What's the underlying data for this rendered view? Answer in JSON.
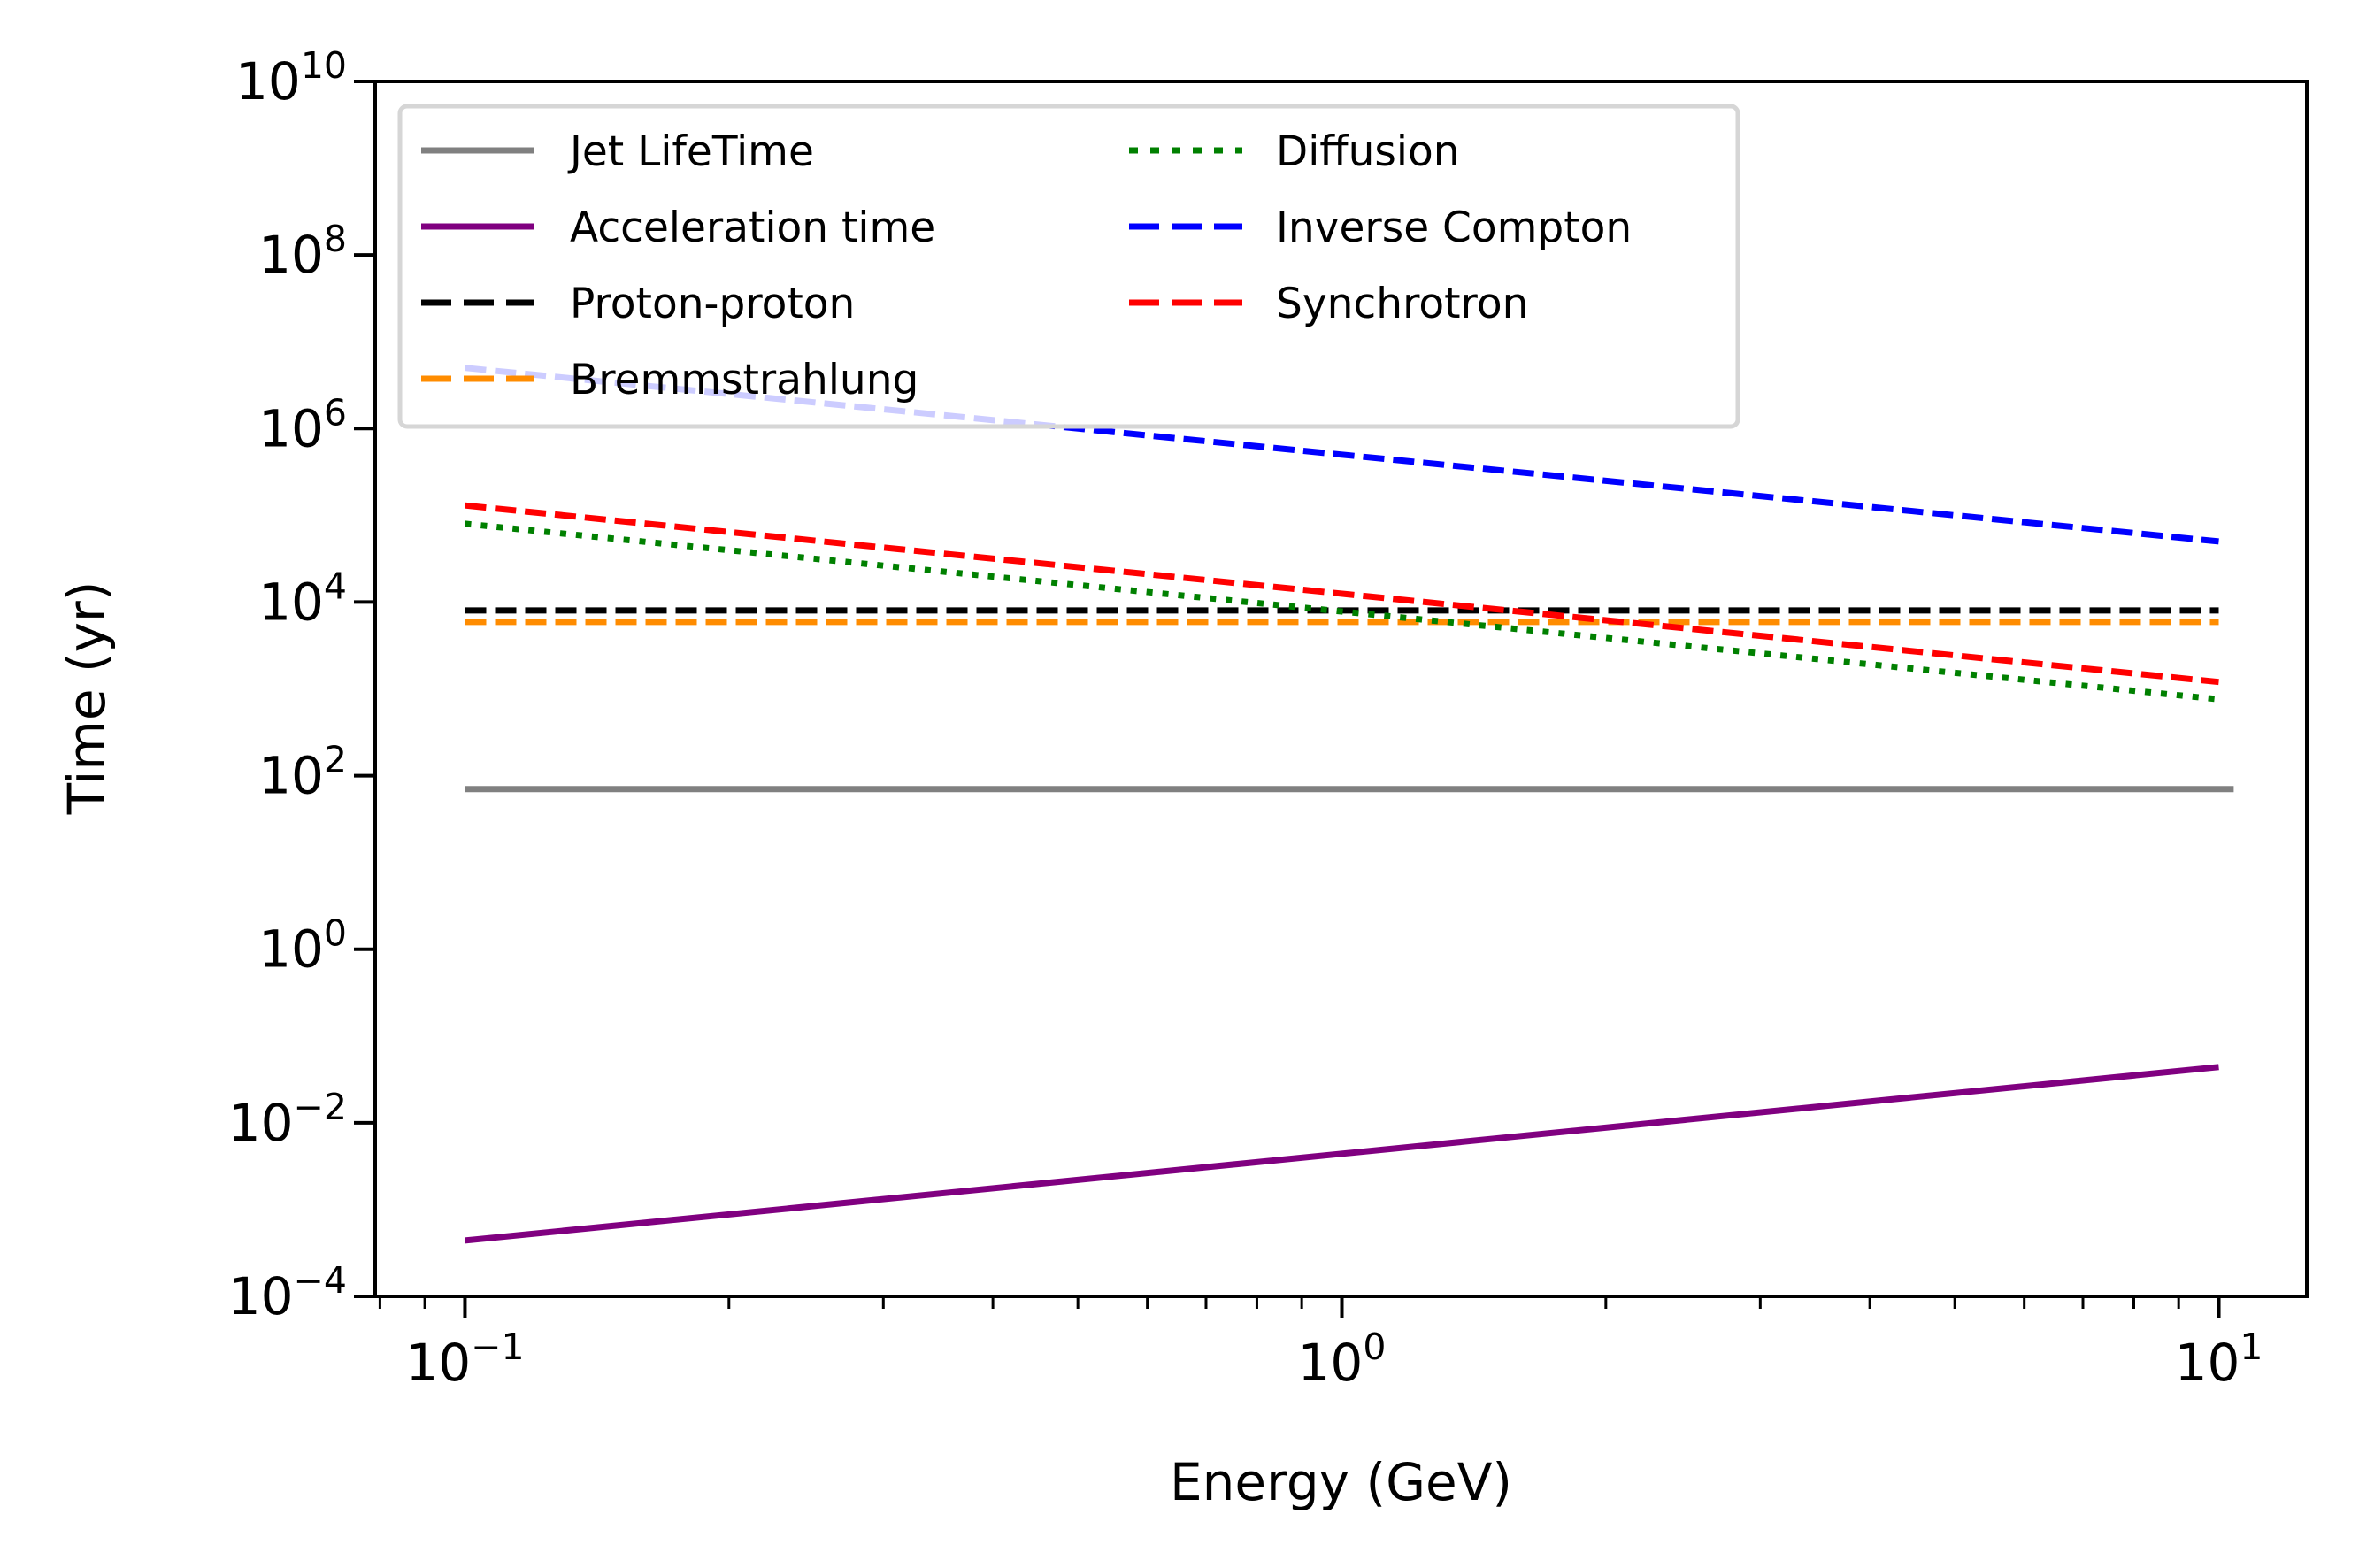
{
  "chart_data": {
    "type": "line",
    "title": "",
    "xlabel": "Energy (GeV)",
    "ylabel": "Time (yr)",
    "xscale": "log",
    "yscale": "log",
    "xlim": [
      0.079,
      12.6
    ],
    "ylim": [
      0.0001,
      10000000000.0
    ],
    "grid": false,
    "legend_position": "top-left",
    "legend_columns": 2,
    "x_ticks": [
      {
        "base": "10",
        "exp": "−1",
        "value": 0.1
      },
      {
        "base": "10",
        "exp": "0",
        "value": 1
      },
      {
        "base": "10",
        "exp": "1",
        "value": 10
      }
    ],
    "y_ticks": [
      {
        "base": "10",
        "exp": "−4",
        "value": 0.0001
      },
      {
        "base": "10",
        "exp": "−2",
        "value": 0.01
      },
      {
        "base": "10",
        "exp": "0",
        "value": 1
      },
      {
        "base": "10",
        "exp": "2",
        "value": 100.0
      },
      {
        "base": "10",
        "exp": "4",
        "value": 10000.0
      },
      {
        "base": "10",
        "exp": "6",
        "value": 1000000.0
      },
      {
        "base": "10",
        "exp": "8",
        "value": 100000000.0
      },
      {
        "base": "10",
        "exp": "10",
        "value": 10000000000.0
      }
    ],
    "series": [
      {
        "name": "Jet LifeTime",
        "color": "#808080",
        "style": "solid",
        "x": [
          0.1,
          10.4
        ],
        "y": [
          70,
          70
        ]
      },
      {
        "name": "Acceleration time",
        "color": "#800080",
        "style": "solid",
        "x": [
          0.1,
          10
        ],
        "y": [
          0.00044,
          0.044
        ]
      },
      {
        "name": "Proton-proton",
        "color": "#000000",
        "style": "dashed",
        "x": [
          0.1,
          10
        ],
        "y": [
          8000,
          8000
        ]
      },
      {
        "name": "Bremmstrahlung",
        "color": "#ff8c00",
        "style": "dashed",
        "x": [
          0.1,
          10
        ],
        "y": [
          5900,
          5900
        ]
      },
      {
        "name": "Diffusion",
        "color": "#008000",
        "style": "dotted",
        "x": [
          0.1,
          10
        ],
        "y": [
          80000,
          760
        ]
      },
      {
        "name": "Inverse Compton",
        "color": "#0000ff",
        "style": "dashed",
        "x": [
          0.1,
          10
        ],
        "y": [
          5000000,
          50000
        ]
      },
      {
        "name": "Synchrotron",
        "color": "#ff0000",
        "style": "dashed",
        "x": [
          0.1,
          10
        ],
        "y": [
          130000,
          1200
        ]
      }
    ]
  }
}
